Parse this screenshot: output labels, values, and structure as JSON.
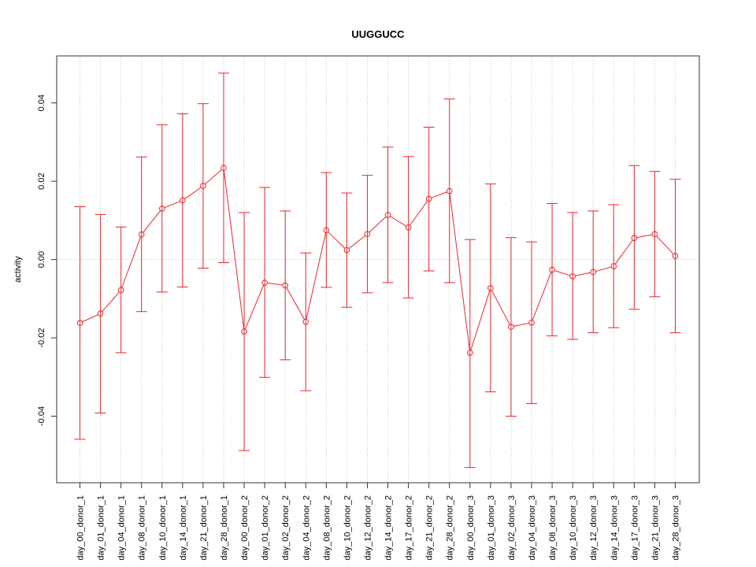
{
  "chart_data": {
    "type": "line",
    "title": "UUGGUCC",
    "xlabel": "",
    "ylabel": "activity",
    "ylim": [
      -0.057,
      0.052
    ],
    "y_ticks": [
      "-0.04",
      "-0.02",
      "0.00",
      "0.02",
      "0.04"
    ],
    "y_tick_values": [
      -0.04,
      -0.02,
      0.0,
      0.02,
      0.04
    ],
    "grid": true,
    "line_color": "#e8262a",
    "grid_color": "#c8c8c8",
    "categories": [
      "day_00_donor_1",
      "day_01_donor_1",
      "day_04_donor_1",
      "day_08_donor_1",
      "day_10_donor_1",
      "day_14_donor_1",
      "day_21_donor_1",
      "day_28_donor_1",
      "day_00_donor_2",
      "day_01_donor_2",
      "day_02_donor_2",
      "day_04_donor_2",
      "day_08_donor_2",
      "day_10_donor_2",
      "day_12_donor_2",
      "day_14_donor_2",
      "day_17_donor_2",
      "day_21_donor_2",
      "day_28_donor_2",
      "day_00_donor_3",
      "day_01_donor_3",
      "day_02_donor_3",
      "day_04_donor_3",
      "day_08_donor_3",
      "day_10_donor_3",
      "day_12_donor_3",
      "day_14_donor_3",
      "day_17_donor_3",
      "day_21_donor_3",
      "day_28_donor_3"
    ],
    "values": [
      -0.0162,
      -0.0138,
      -0.0078,
      0.0064,
      0.013,
      0.0151,
      0.0188,
      0.0234,
      -0.0184,
      -0.0059,
      -0.0066,
      -0.0159,
      0.0075,
      0.0024,
      0.0065,
      0.0114,
      0.0082,
      0.0155,
      0.0175,
      -0.0238,
      -0.0073,
      -0.0172,
      -0.0161,
      -0.0026,
      -0.0043,
      -0.0032,
      -0.0017,
      0.0055,
      0.0065,
      0.0009
    ],
    "upper": [
      0.0135,
      0.0115,
      0.0083,
      0.0262,
      0.0344,
      0.0372,
      0.0398,
      0.0476,
      0.012,
      0.0184,
      0.0124,
      0.0017,
      0.0222,
      0.017,
      0.0215,
      0.0287,
      0.0263,
      0.0338,
      0.041,
      0.0051,
      0.0193,
      0.0056,
      0.0045,
      0.0143,
      0.012,
      0.0124,
      0.014,
      0.024,
      0.0225,
      0.0205
    ],
    "lower": [
      -0.0459,
      -0.0392,
      -0.0238,
      -0.0133,
      -0.0083,
      -0.007,
      -0.0022,
      -0.0008,
      -0.0488,
      -0.0301,
      -0.0256,
      -0.0335,
      -0.0071,
      -0.0122,
      -0.0085,
      -0.0059,
      -0.0098,
      -0.0029,
      -0.0059,
      -0.0531,
      -0.0338,
      -0.04,
      -0.0368,
      -0.0195,
      -0.0204,
      -0.0187,
      -0.0174,
      -0.0127,
      -0.0095,
      -0.0187
    ]
  }
}
